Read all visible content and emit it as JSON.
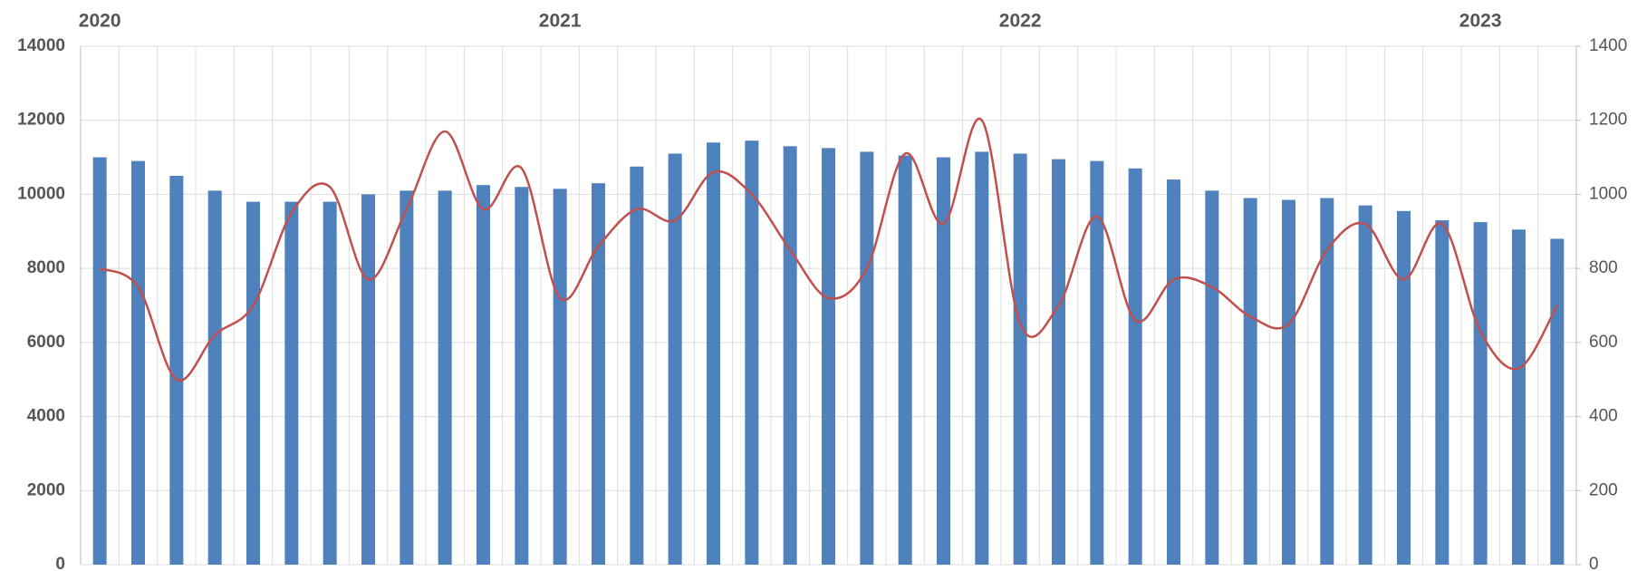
{
  "chart_data": {
    "type": "bar-line",
    "categories": [
      "2020",
      null,
      null,
      null,
      null,
      null,
      null,
      null,
      null,
      null,
      null,
      null,
      "2021",
      null,
      null,
      null,
      null,
      null,
      null,
      null,
      null,
      null,
      null,
      null,
      "2022",
      null,
      null,
      null,
      null,
      null,
      null,
      null,
      null,
      null,
      null,
      null,
      "2023",
      null,
      null
    ],
    "series": [
      {
        "type": "bar",
        "color": "#4f81bd",
        "values": [
          11000,
          10900,
          10500,
          10100,
          9800,
          9800,
          9800,
          10000,
          10100,
          10100,
          10250,
          10200,
          10150,
          10300,
          10750,
          11100,
          11400,
          11450,
          11300,
          11250,
          11150,
          11050,
          11000,
          11150,
          11100,
          10950,
          10900,
          10700,
          10400,
          10100,
          9900,
          9850,
          9900,
          9700,
          9550,
          9300,
          9250,
          9050,
          8800
        ]
      },
      {
        "type": "line",
        "axis": "y2",
        "smooth": true,
        "color": "#c0504d",
        "values": [
          800,
          750,
          500,
          620,
          700,
          950,
          1020,
          770,
          960,
          1170,
          960,
          1070,
          720,
          860,
          960,
          930,
          1060,
          1000,
          850,
          720,
          800,
          1110,
          920,
          1200,
          650,
          700,
          940,
          660,
          770,
          750,
          670,
          650,
          850,
          920,
          770,
          920,
          630,
          530,
          700
        ]
      }
    ],
    "ylim": [
      0,
      14000
    ],
    "yticks": [
      0,
      2000,
      4000,
      6000,
      8000,
      10000,
      12000,
      14000
    ],
    "y2lim": [
      0,
      1400
    ],
    "y2ticks": [
      0,
      200,
      400,
      600,
      800,
      1000,
      1200,
      1400
    ],
    "grid": true
  }
}
